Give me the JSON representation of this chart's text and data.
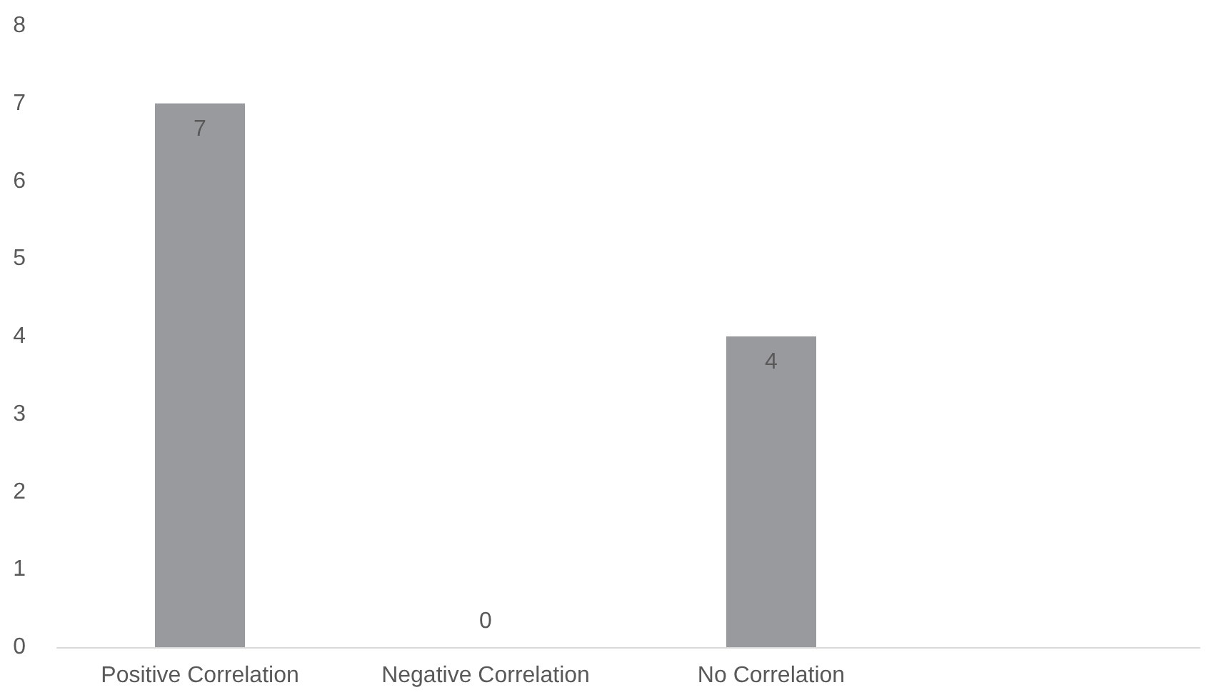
{
  "chart_data": {
    "type": "bar",
    "categories": [
      "Positive Correlation",
      "Negative Correlation",
      "No Correlation",
      null
    ],
    "values": [
      7,
      0,
      4,
      null
    ],
    "color": "#999a9e",
    "ylim": [
      0,
      8
    ],
    "yticks": [
      0,
      1,
      2,
      3,
      4,
      5,
      6,
      7,
      8
    ],
    "grid": false,
    "data_labels": true
  }
}
